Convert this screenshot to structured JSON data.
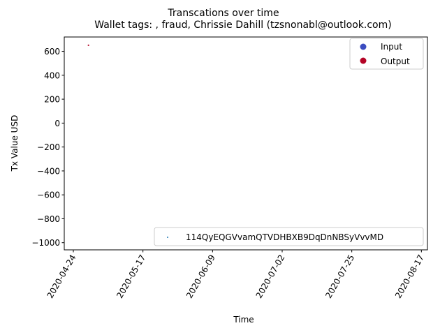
{
  "chart_data": {
    "type": "scatter",
    "suptitle": "Transcations over time",
    "title": "Wallet tags: , fraud, Chrissie Dahill (tzsnonabl@outlook.com)",
    "xlabel": "Time",
    "ylabel": "Tx Value USD",
    "x_ticks": [
      "2020-04-24",
      "2020-05-17",
      "2020-06-09",
      "2020-07-02",
      "2020-07-25",
      "2020-08-17"
    ],
    "xlim": [
      "2020-04-21",
      "2020-08-19"
    ],
    "ylim": [
      -1060,
      720
    ],
    "y_ticks": [
      600,
      400,
      200,
      0,
      -200,
      -400,
      -600,
      -800,
      -1000
    ],
    "y_tick_labels": [
      "600",
      "400",
      "200",
      "0",
      "−200",
      "−400",
      "−600",
      "−800",
      "−1000"
    ],
    "series": [
      {
        "name": "Output",
        "color": "#b40426",
        "points": [
          {
            "x": "2020-04-29",
            "y": 651
          }
        ]
      }
    ],
    "legend_type": {
      "position": "upper right",
      "entries": [
        {
          "label": "Input",
          "color": "#3b4cc0"
        },
        {
          "label": "Output",
          "color": "#b40426"
        }
      ]
    },
    "legend_address": {
      "position": "lower right",
      "entries": [
        {
          "label": "114QyEQGVvamQTVDHBXB9DqDnNBSyVvvMD",
          "color": "#1f77b4"
        }
      ]
    }
  }
}
